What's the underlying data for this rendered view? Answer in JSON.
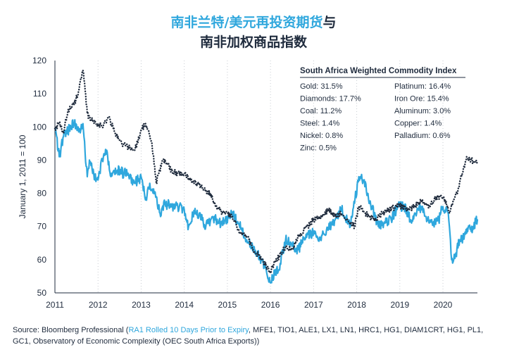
{
  "title": {
    "line1_highlight": "南非兰特/美元再投资期货",
    "line1_rest": "与",
    "line2": "南非加权商品指数"
  },
  "footer": {
    "prefix": "Source: Bloomberg Professional (",
    "link": "RA1 Rolled 10 Days Prior to Expiry",
    "rest": ", MFE1, TIO1, ALE1, LX1, LN1, HRC1, HG1, DIAM1CRT, HG1, PL1, GC1, Observatory of Economic Complexity (OEC South Africa Exports))"
  },
  "colors": {
    "rand": "#2fa7dd",
    "index": "#1f2b3d",
    "text": "#1f2b3d"
  },
  "chart_data": {
    "type": "line",
    "ylabel": "January 1, 2011 = 100",
    "ylim": [
      50,
      120
    ],
    "xlim": [
      2011.0,
      2020.8
    ],
    "yticks": [
      50,
      60,
      70,
      80,
      90,
      100,
      110,
      120
    ],
    "xticks": [
      "2011",
      "2012",
      "2013",
      "2014",
      "2015",
      "2016",
      "2017",
      "2018",
      "2019",
      "2020"
    ],
    "grid": "vertical dotted",
    "legend_box": {
      "title": "South Africa Weighted Commodity Index",
      "left_items": [
        "Gold: 31.5%",
        "Diamonds: 17.7%",
        "Coal: 11.2%",
        "Steel: 1.4%",
        "Nickel: 0.8%",
        "Zinc: 0.5%"
      ],
      "right_items": [
        "Platinum: 16.4%",
        "Iron Ore: 15.4%",
        "Aluminum: 3.0%",
        "Copper: 1.4%",
        "Palladium: 0.6%"
      ]
    },
    "series": [
      {
        "style": "solid",
        "x": [
          2011.0,
          2011.1,
          2011.2,
          2011.3,
          2011.45,
          2011.6,
          2011.65,
          2011.7,
          2011.75,
          2011.8,
          2011.9,
          2012.0,
          2012.1,
          2012.2,
          2012.3,
          2012.45,
          2012.6,
          2012.7,
          2012.85,
          2013.0,
          2013.1,
          2013.2,
          2013.35,
          2013.45,
          2013.55,
          2013.7,
          2013.85,
          2014.0,
          2014.1,
          2014.2,
          2014.35,
          2014.5,
          2014.65,
          2014.8,
          2014.95,
          2015.1,
          2015.25,
          2015.45,
          2015.6,
          2015.75,
          2015.9,
          2016.0,
          2016.05,
          2016.2,
          2016.35,
          2016.5,
          2016.65,
          2016.85,
          2017.0,
          2017.15,
          2017.3,
          2017.5,
          2017.65,
          2017.85,
          2017.95,
          2018.05,
          2018.15,
          2018.25,
          2018.35,
          2018.5,
          2018.65,
          2018.8,
          2018.95,
          2019.1,
          2019.25,
          2019.45,
          2019.6,
          2019.75,
          2019.9,
          2020.0,
          2020.1,
          2020.15,
          2020.2,
          2020.25,
          2020.3,
          2020.4,
          2020.55,
          2020.7,
          2020.8
        ],
        "values": [
          99.5,
          91,
          97,
          99,
          101,
          99,
          101,
          92,
          85,
          90,
          86,
          84,
          90,
          93,
          85,
          87,
          86,
          86,
          83,
          85,
          78,
          83,
          79,
          73,
          77,
          76,
          76,
          75,
          70,
          74,
          74,
          70,
          73,
          71,
          72,
          74,
          71,
          66,
          64,
          61,
          57,
          53,
          55,
          57,
          66,
          64,
          63,
          68,
          68,
          66,
          69,
          72,
          75,
          70,
          77,
          85,
          84,
          80,
          76,
          70,
          71,
          72,
          76,
          76,
          72,
          76,
          73,
          71,
          72,
          76,
          75,
          70,
          60,
          60,
          62,
          66,
          68,
          70,
          72
        ]
      },
      {
        "style": "dotted",
        "x": [
          2011.0,
          2011.1,
          2011.2,
          2011.3,
          2011.45,
          2011.55,
          2011.65,
          2011.7,
          2011.75,
          2011.85,
          2012.0,
          2012.1,
          2012.25,
          2012.4,
          2012.55,
          2012.7,
          2012.85,
          2013.0,
          2013.1,
          2013.25,
          2013.35,
          2013.5,
          2013.6,
          2013.7,
          2013.85,
          2014.0,
          2014.15,
          2014.3,
          2014.45,
          2014.6,
          2014.75,
          2014.9,
          2015.0,
          2015.15,
          2015.3,
          2015.45,
          2015.6,
          2015.75,
          2015.9,
          2016.0,
          2016.05,
          2016.2,
          2016.35,
          2016.5,
          2016.65,
          2016.85,
          2017.0,
          2017.15,
          2017.35,
          2017.5,
          2017.65,
          2017.8,
          2017.95,
          2018.05,
          2018.2,
          2018.3,
          2018.45,
          2018.6,
          2018.75,
          2018.9,
          2019.05,
          2019.2,
          2019.35,
          2019.5,
          2019.7,
          2019.85,
          2020.0,
          2020.1,
          2020.15,
          2020.25,
          2020.35,
          2020.45,
          2020.55,
          2020.65,
          2020.8
        ],
        "values": [
          99.5,
          101,
          98,
          105,
          107,
          111,
          117,
          111,
          104,
          102,
          101,
          100,
          103,
          98,
          95,
          94,
          93,
          99,
          101,
          95,
          83,
          90,
          89,
          87,
          86,
          86,
          84,
          83,
          81,
          80,
          76,
          74,
          74,
          72,
          68,
          67,
          63,
          61,
          58,
          56,
          58,
          61,
          64,
          63,
          67,
          70,
          72,
          73,
          75,
          73,
          74,
          72,
          70,
          76,
          74,
          73,
          72,
          74,
          75,
          76,
          76,
          75,
          76,
          78,
          76,
          79,
          79,
          76,
          74,
          78,
          81,
          86,
          91,
          90,
          89
        ]
      }
    ]
  }
}
